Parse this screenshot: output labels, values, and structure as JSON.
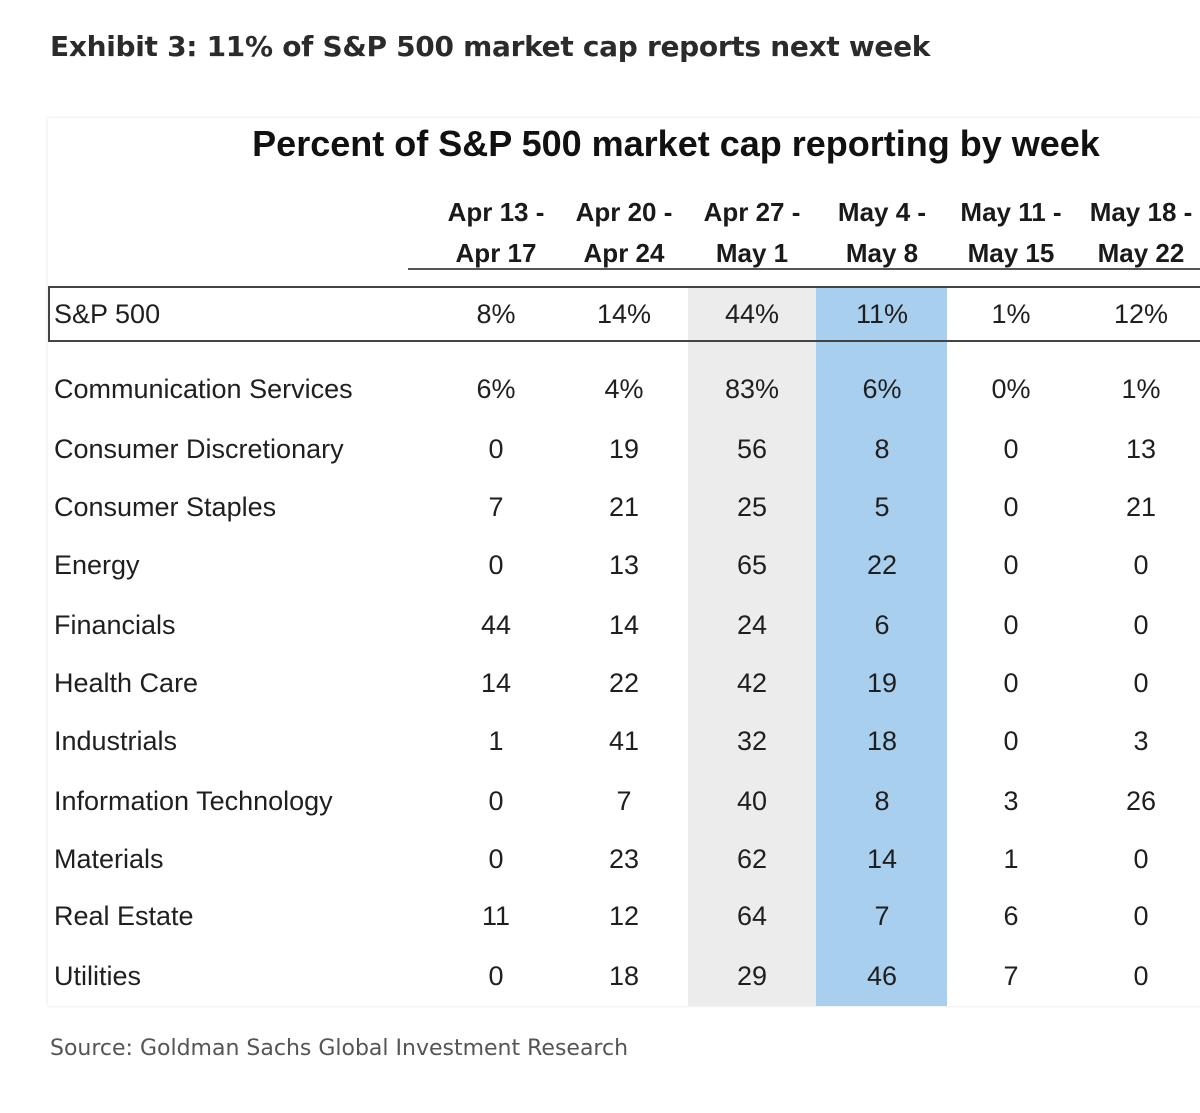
{
  "exhibit_title": "Exhibit 3: 11% of S&P 500 market cap reports next week",
  "source": "Source: Goldman Sachs Global Investment Research",
  "colors": {
    "highlight_gray": "#ececec",
    "highlight_blue": "#a9cfee",
    "text": "#1f1f1f"
  },
  "chart_data": {
    "type": "table",
    "title": "Percent of S&P 500 market cap reporting by week",
    "columns": [
      {
        "line1": "Apr 13 -",
        "line2": "Apr 17"
      },
      {
        "line1": "Apr 20 -",
        "line2": "Apr 24"
      },
      {
        "line1": "Apr 27 -",
        "line2": "May 1"
      },
      {
        "line1": "May 4 -",
        "line2": "May 8"
      },
      {
        "line1": "May 11 -",
        "line2": "May 15"
      },
      {
        "line1": "May 18 -",
        "line2": "May 22"
      }
    ],
    "highlighted_columns": {
      "gray": 2,
      "blue": 3
    },
    "rows": [
      {
        "label": "S&P 500",
        "cells": [
          "8%",
          "14%",
          "44%",
          "11%",
          "1%",
          "12%"
        ],
        "boxed": true
      },
      {
        "label": "Communication Services",
        "cells": [
          "6%",
          "4%",
          "83%",
          "6%",
          "0%",
          "1%"
        ]
      },
      {
        "label": "Consumer Discretionary",
        "cells": [
          "0",
          "19",
          "56",
          "8",
          "0",
          "13"
        ]
      },
      {
        "label": "Consumer Staples",
        "cells": [
          "7",
          "21",
          "25",
          "5",
          "0",
          "21"
        ]
      },
      {
        "label": "Energy",
        "cells": [
          "0",
          "13",
          "65",
          "22",
          "0",
          "0"
        ]
      },
      {
        "label": "Financials",
        "cells": [
          "44",
          "14",
          "24",
          "6",
          "0",
          "0"
        ]
      },
      {
        "label": "Health Care",
        "cells": [
          "14",
          "22",
          "42",
          "19",
          "0",
          "0"
        ]
      },
      {
        "label": "Industrials",
        "cells": [
          "1",
          "41",
          "32",
          "18",
          "0",
          "3"
        ]
      },
      {
        "label": "Information Technology",
        "cells": [
          "0",
          "7",
          "40",
          "8",
          "3",
          "26"
        ]
      },
      {
        "label": "Materials",
        "cells": [
          "0",
          "23",
          "62",
          "14",
          "1",
          "0"
        ]
      },
      {
        "label": "Real Estate",
        "cells": [
          "11",
          "12",
          "64",
          "7",
          "6",
          "0"
        ]
      },
      {
        "label": "Utilities",
        "cells": [
          "0",
          "18",
          "29",
          "46",
          "7",
          "0"
        ]
      }
    ]
  }
}
